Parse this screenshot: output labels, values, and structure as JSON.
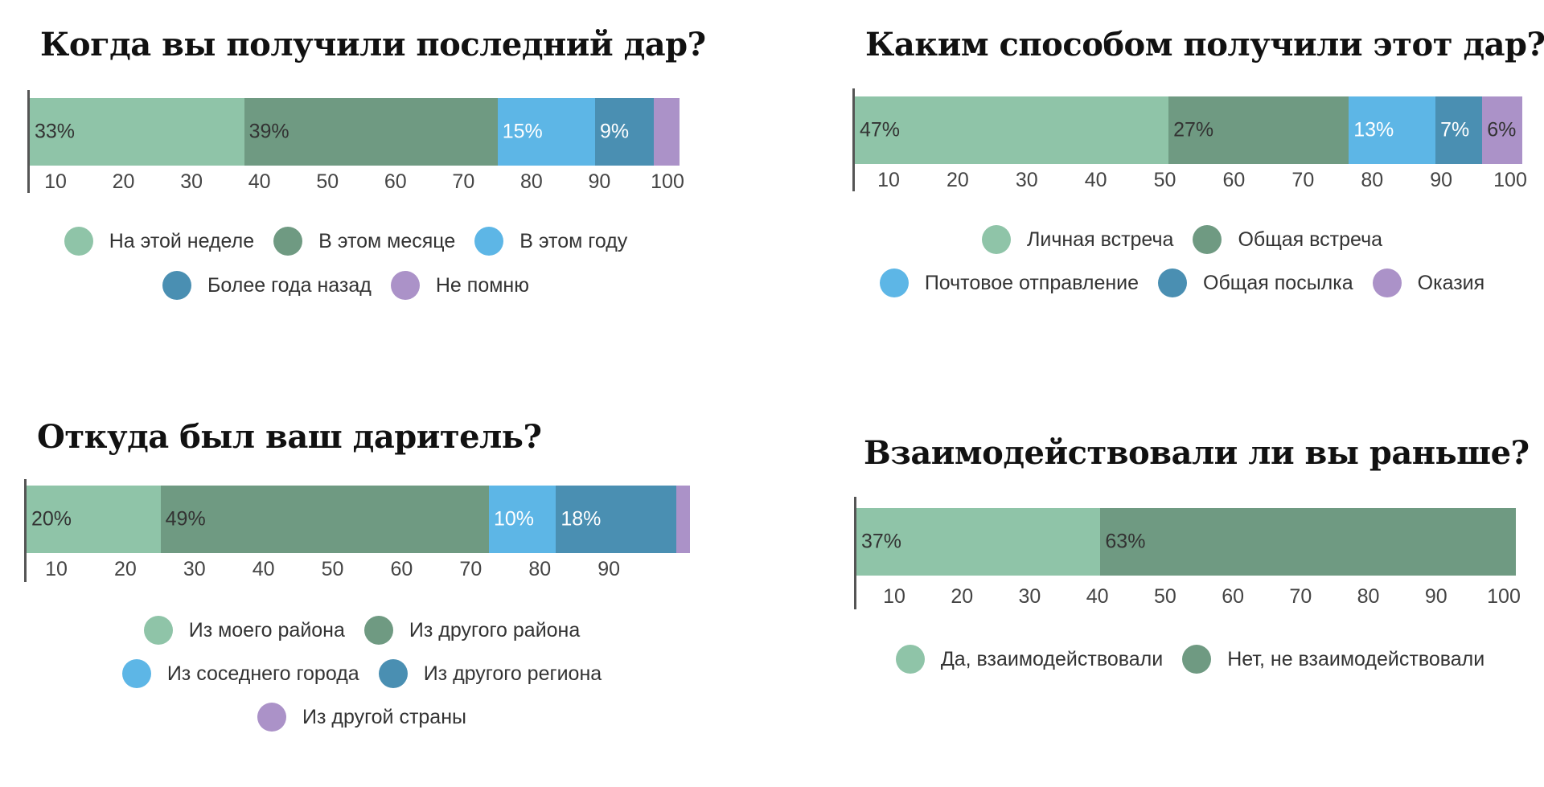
{
  "colors": {
    "light_green": "#8fc4a8",
    "dark_green": "#6f9a82",
    "light_blue": "#5db6e6",
    "dark_blue": "#4a8fb2",
    "purple": "#ab92c8"
  },
  "chart_data": [
    {
      "type": "bar",
      "orientation": "horizontal-stacked",
      "title": "Когда вы получили последний дар?",
      "segments": [
        {
          "name": "На этой неделе",
          "value": 33,
          "label": "33%",
          "color": "#8fc4a8"
        },
        {
          "name": "В этом месяце",
          "value": 39,
          "label": "39%",
          "color": "#6f9a82"
        },
        {
          "name": "В этом году",
          "value": 15,
          "label": "15%",
          "color": "#5db6e6"
        },
        {
          "name": "Более года назад",
          "value": 9,
          "label": "9%",
          "color": "#4a8fb2"
        },
        {
          "name": "Не помню",
          "value": 4,
          "label": "",
          "color": "#ab92c8"
        }
      ],
      "ticks": [
        "10",
        "20",
        "30",
        "40",
        "50",
        "60",
        "70",
        "80",
        "90",
        "100"
      ],
      "legend_rows": [
        [
          0,
          1,
          2
        ],
        [
          3,
          4
        ]
      ]
    },
    {
      "type": "bar",
      "orientation": "horizontal-stacked",
      "title": "Каким способом получили этот дар?",
      "segments": [
        {
          "name": "Личная встреча",
          "value": 47,
          "label": "47%",
          "color": "#8fc4a8"
        },
        {
          "name": "Общая встреча",
          "value": 27,
          "label": "27%",
          "color": "#6f9a82"
        },
        {
          "name": "Почтовое отправление",
          "value": 13,
          "label": "13%",
          "color": "#5db6e6"
        },
        {
          "name": "Общая посылка",
          "value": 7,
          "label": "7%",
          "color": "#4a8fb2"
        },
        {
          "name": "Оказия",
          "value": 6,
          "label": "6%",
          "color": "#ab92c8"
        }
      ],
      "ticks": [
        "10",
        "20",
        "30",
        "40",
        "50",
        "60",
        "70",
        "80",
        "90",
        "100"
      ],
      "legend_rows": [
        [
          0,
          1
        ],
        [
          2,
          3,
          4
        ]
      ]
    },
    {
      "type": "bar",
      "orientation": "horizontal-stacked",
      "title": "Откуда был ваш даритель?",
      "segments": [
        {
          "name": "Из моего района",
          "value": 20,
          "label": "20%",
          "color": "#8fc4a8"
        },
        {
          "name": "Из другого района",
          "value": 49,
          "label": "49%",
          "color": "#6f9a82"
        },
        {
          "name": "Из соседнего города",
          "value": 10,
          "label": "10%",
          "color": "#5db6e6"
        },
        {
          "name": "Из другого региона",
          "value": 18,
          "label": "18%",
          "color": "#4a8fb2"
        },
        {
          "name": "Из другой страны",
          "value": 2,
          "label": "",
          "color": "#ab92c8"
        }
      ],
      "ticks": [
        "10",
        "20",
        "30",
        "40",
        "50",
        "60",
        "70",
        "80",
        "90"
      ],
      "legend_rows": [
        [
          0,
          1
        ],
        [
          2,
          3
        ],
        [
          4
        ]
      ]
    },
    {
      "type": "bar",
      "orientation": "horizontal-stacked",
      "title": "Взаимодействовали ли вы раньше?",
      "segments": [
        {
          "name": "Да, взаимодействовали",
          "value": 37,
          "label": "37%",
          "color": "#8fc4a8"
        },
        {
          "name": "Нет, не взаимодействовали",
          "value": 63,
          "label": "63%",
          "color": "#6f9a82"
        }
      ],
      "ticks": [
        "10",
        "20",
        "30",
        "40",
        "50",
        "60",
        "70",
        "80",
        "90",
        "100"
      ],
      "legend_rows": [
        [
          0,
          1
        ]
      ]
    }
  ]
}
